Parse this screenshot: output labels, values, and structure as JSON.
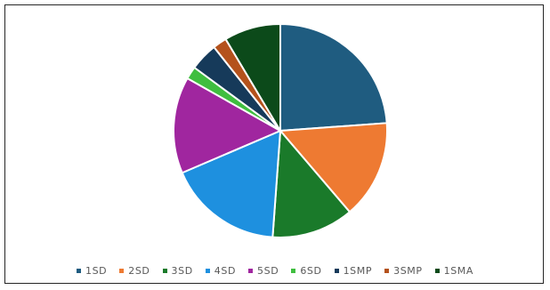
{
  "chart_data": {
    "type": "pie",
    "title": "",
    "start_angle_deg": 0,
    "direction": "clockwise",
    "legend_position": "bottom",
    "slices": [
      {
        "label": "1SD",
        "value": 24.8,
        "color": "#1F5C80"
      },
      {
        "label": "2SD",
        "value": 15.5,
        "color": "#EE7A32"
      },
      {
        "label": "3SD",
        "value": 12.9,
        "color": "#1A7A2A"
      },
      {
        "label": "4SD",
        "value": 18.1,
        "color": "#1E90DF"
      },
      {
        "label": "5SD",
        "value": 15.2,
        "color": "#A0269F"
      },
      {
        "label": "6SD",
        "value": 2.0,
        "color": "#3FBE3F"
      },
      {
        "label": "1SMP",
        "value": 4.4,
        "color": "#163A5A"
      },
      {
        "label": "3SMP",
        "value": 2.2,
        "color": "#B4521C"
      },
      {
        "label": "1SMA",
        "value": 8.9,
        "color": "#0C4A1A"
      }
    ]
  }
}
